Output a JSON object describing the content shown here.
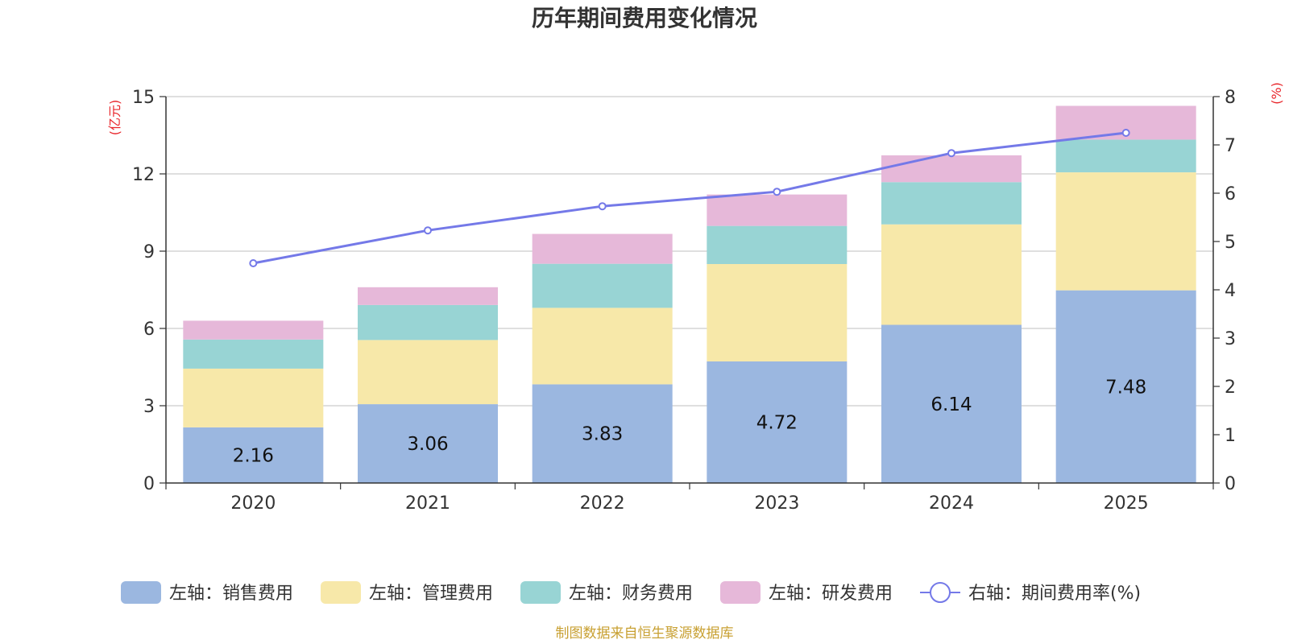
{
  "chart_data": {
    "type": "bar",
    "stacked": true,
    "title": "历年期间费用变化情况",
    "categories": [
      "2020",
      "2021",
      "2022",
      "2023",
      "2024",
      "2025"
    ],
    "left_axis": {
      "unit": "(亿元)",
      "ylim": [
        0,
        15
      ],
      "ticks": [
        0,
        3,
        6,
        9,
        12,
        15
      ]
    },
    "right_axis": {
      "unit": "(%)",
      "ylim": [
        0,
        8
      ],
      "ticks": [
        0,
        1,
        2,
        3,
        4,
        5,
        6,
        7,
        8
      ]
    },
    "series": [
      {
        "name": "左轴：销售费用",
        "axis": "left",
        "color": "#9bb7e0",
        "values": [
          2.16,
          3.06,
          3.83,
          4.72,
          6.14,
          7.48
        ],
        "show_labels": true
      },
      {
        "name": "左轴：管理费用",
        "axis": "left",
        "color": "#f7e8a9",
        "values": [
          2.28,
          2.49,
          2.97,
          3.78,
          3.9,
          4.58
        ]
      },
      {
        "name": "左轴：财务费用",
        "axis": "left",
        "color": "#98d4d4",
        "values": [
          1.13,
          1.36,
          1.71,
          1.48,
          1.64,
          1.27
        ]
      },
      {
        "name": "左轴：研发费用",
        "axis": "left",
        "color": "#e6b8d9",
        "values": [
          0.73,
          0.69,
          1.16,
          1.22,
          1.04,
          1.31
        ]
      }
    ],
    "line": {
      "name": "右轴：期间费用率(%)",
      "axis": "right",
      "color": "#7479e8",
      "values": [
        4.55,
        5.23,
        5.73,
        6.03,
        6.83,
        7.25
      ]
    },
    "source": "制图数据来自恒生聚源数据库"
  }
}
